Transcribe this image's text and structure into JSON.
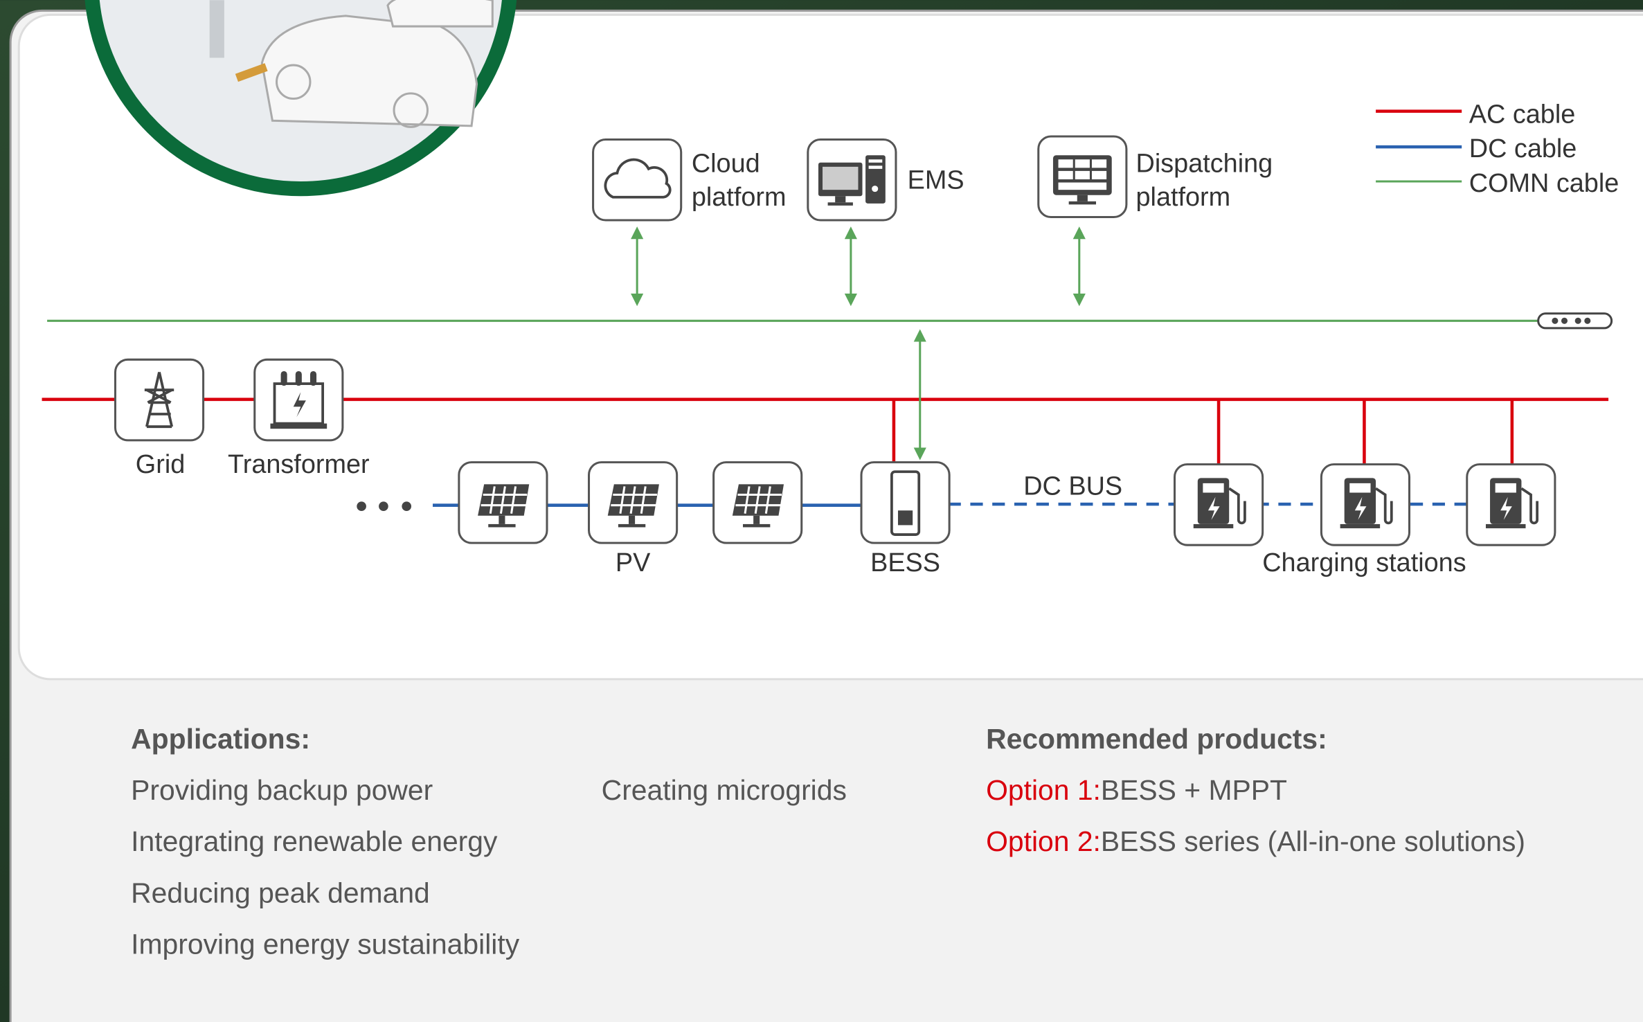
{
  "top_nodes": [
    {
      "label_lines": [
        "Cloud",
        "platform"
      ]
    },
    {
      "label_lines": [
        "EMS"
      ]
    },
    {
      "label_lines": [
        "Dispatching",
        "platform"
      ]
    }
  ],
  "legend": [
    "AC cable",
    "DC cable",
    "COMN cable"
  ],
  "grid_label": "Grid",
  "transformer_label": "Transformer",
  "pv_label": "PV",
  "bess_label": "BESS",
  "dc_bus_label": "DC BUS",
  "charging_label": "Charging stations",
  "applications": {
    "title": "Applications:",
    "items": [
      "Providing backup power",
      "Integrating renewable energy",
      "Reducing peak demand",
      "Improving energy sustainability",
      "Creating microgrids"
    ]
  },
  "recommended": {
    "title": "Recommended products:",
    "options": [
      {
        "prefix": "Option 1:",
        "text": "BESS + MPPT"
      },
      {
        "prefix": "Option 2:",
        "text": "BESS series (All-in-one solutions)"
      }
    ]
  }
}
